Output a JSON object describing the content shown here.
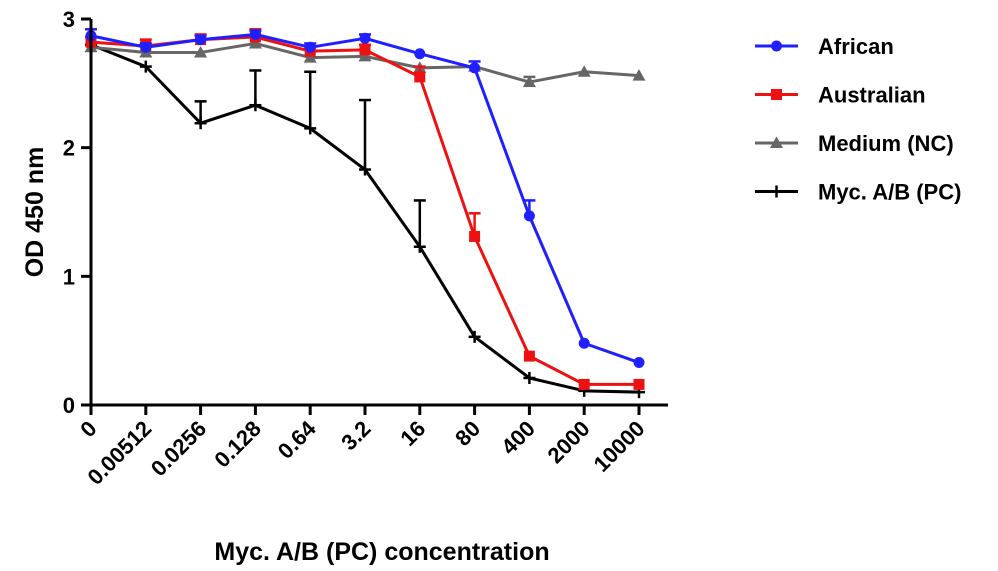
{
  "chart_data": {
    "type": "line",
    "title": "",
    "xlabel": "Myc. A/B (PC) concentration",
    "ylabel": "OD 450 nm",
    "categories": [
      "0",
      "0.00512",
      "0.0256",
      "0.128",
      "0.64",
      "3.2",
      "16",
      "80",
      "400",
      "2000",
      "10000"
    ],
    "yticks": [
      "0",
      "1",
      "2",
      "3"
    ],
    "ylim": [
      0,
      3
    ],
    "grid": false,
    "legend_position": "right",
    "series": [
      {
        "name": "African",
        "color": "#1f1fff",
        "marker": "circle",
        "values": [
          2.87,
          2.78,
          2.84,
          2.88,
          2.78,
          2.85,
          2.73,
          2.62,
          1.47,
          0.48,
          0.33
        ],
        "error_plus": [
          0.05,
          0.03,
          0.03,
          0.03,
          0.03,
          0.03,
          0.01,
          0.05,
          0.12,
          0.01,
          0.01
        ]
      },
      {
        "name": "Australian",
        "color": "#ee1111",
        "marker": "square",
        "values": [
          2.82,
          2.79,
          2.84,
          2.86,
          2.75,
          2.76,
          2.55,
          1.31,
          0.38,
          0.16,
          0.16
        ],
        "error_plus": [
          0.04,
          0.05,
          0.04,
          0.06,
          0.03,
          0.04,
          0.08,
          0.18,
          0.01,
          0.01,
          0.01
        ]
      },
      {
        "name": "Medium (NC)",
        "color": "#666666",
        "marker": "triangle",
        "values": [
          2.78,
          2.74,
          2.74,
          2.81,
          2.7,
          2.71,
          2.62,
          2.63,
          2.51,
          2.59,
          2.56
        ],
        "error_plus": [
          0.01,
          0.01,
          0.01,
          0.02,
          0.01,
          0.01,
          0.01,
          0.01,
          0.04,
          0.01,
          0.01
        ]
      },
      {
        "name": "Myc. A/B (PC)",
        "color": "#000000",
        "marker": "plus",
        "values": [
          2.8,
          2.63,
          2.19,
          2.33,
          2.15,
          1.83,
          1.23,
          0.53,
          0.21,
          0.11,
          0.1
        ],
        "error_plus": [
          0.01,
          0.01,
          0.17,
          0.27,
          0.44,
          0.54,
          0.36,
          0.01,
          0.01,
          0.01,
          0.01
        ]
      }
    ]
  }
}
